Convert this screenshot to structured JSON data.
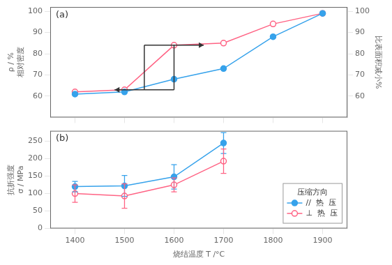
{
  "chart_data": [
    {
      "type": "line",
      "annotation": "(a)",
      "x": [
        1400,
        1500,
        1600,
        1700,
        1800,
        1900
      ],
      "series": [
        {
          "values": [
            61,
            62,
            68,
            73,
            88,
            99
          ],
          "color": "#36a2eb",
          "marker": "circle"
        },
        {
          "values": [
            62,
            63,
            84,
            85,
            94,
            99
          ],
          "color": "#ff6384",
          "marker": "open_circle"
        }
      ],
      "xlim": [
        1350,
        1950
      ],
      "xticks": [
        1400,
        1500,
        1600,
        1700,
        1800,
        1900
      ],
      "ylim": [
        50,
        102
      ],
      "yticks": [
        60,
        70,
        80,
        90,
        100
      ],
      "ylabel": [
        "ρ / %",
        "相对密度"
      ],
      "y2lim": [
        50,
        102
      ],
      "y2ticks": [
        60,
        70,
        80,
        90,
        100
      ],
      "y2label": "比表面积减小%",
      "bracket": {
        "x": [
          1540,
          1600
        ],
        "y": [
          63,
          84
        ],
        "arrow": 60
      },
      "grid": false,
      "tick_labels": "y"
    },
    {
      "type": "line",
      "annotation": "(b)",
      "x": [
        1400,
        1500,
        1600,
        1700
      ],
      "series": [
        {
          "name": "//  热  压",
          "values": [
            120,
            122,
            148,
            245
          ],
          "errors": [
            15,
            30,
            35,
            30
          ],
          "color": "#36a2eb",
          "marker": "circle"
        },
        {
          "name": "⊥  热  压",
          "values": [
            100,
            93,
            125,
            193
          ],
          "errors": [
            25,
            35,
            20,
            35
          ],
          "color": "#ff6384",
          "marker": "open_circle"
        }
      ],
      "xlim": [
        1350,
        1950
      ],
      "xticks": [
        1400,
        1500,
        1600,
        1700,
        1800,
        1900
      ],
      "ylim": [
        0,
        280
      ],
      "yticks": [
        0,
        50,
        100,
        150,
        200,
        250
      ],
      "xlabel": "烧结温度 T /°C",
      "ylabel": [
        "抗折强度",
        "σ / MPa"
      ],
      "legend": "lower right",
      "legend_title": "压缩方向",
      "grid": false
    }
  ]
}
